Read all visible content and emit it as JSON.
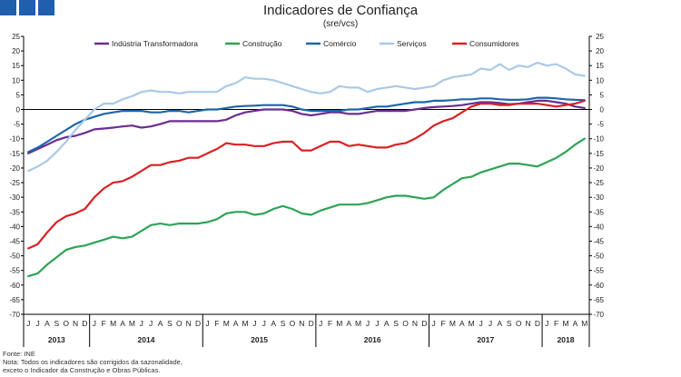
{
  "page": {
    "title": "Indicadores de Confiança",
    "subtitle": "(sre/vcs)",
    "source": "Fonte: INE",
    "note_line1": "Nota: Todos os indicadores são corrigidos da sazonalidade,",
    "note_line2": "exceto o Indicador da Construção e Obras Públicas."
  },
  "chart_data": {
    "type": "line",
    "title": "Indicadores de Confiança",
    "subtitle": "(sre/vcs)",
    "ylim": [
      -70,
      25
    ],
    "ytick_step": 5,
    "dual_y_axis": true,
    "grid": false,
    "zero_line": true,
    "legend_position": "top",
    "x_month_labels": [
      "J",
      "J",
      "A",
      "S",
      "O",
      "N",
      "D",
      "J",
      "F",
      "M",
      "A",
      "M",
      "J",
      "J",
      "A",
      "S",
      "O",
      "N",
      "D",
      "J",
      "F",
      "M",
      "A",
      "M",
      "J",
      "J",
      "A",
      "S",
      "O",
      "N",
      "D",
      "J",
      "F",
      "M",
      "A",
      "M",
      "J",
      "J",
      "A",
      "S",
      "O",
      "N",
      "D",
      "J",
      "F",
      "M",
      "A",
      "M",
      "J",
      "J",
      "A",
      "S",
      "O",
      "N",
      "D",
      "J",
      "F",
      "M",
      "A",
      "M"
    ],
    "x_year_groups": [
      {
        "label": "2013",
        "start": 0,
        "count": 7
      },
      {
        "label": "2014",
        "start": 7,
        "count": 12
      },
      {
        "label": "2015",
        "start": 19,
        "count": 12
      },
      {
        "label": "2016",
        "start": 31,
        "count": 12
      },
      {
        "label": "2017",
        "start": 43,
        "count": 12
      },
      {
        "label": "2018",
        "start": 55,
        "count": 5
      }
    ],
    "series": [
      {
        "name": "Indústria Transformadora",
        "color": "#6b2c91",
        "values": [
          -15,
          -13.5,
          -12,
          -10.5,
          -9.5,
          -9,
          -8,
          -6.8,
          -6.5,
          -6.2,
          -5.8,
          -5.5,
          -6.2,
          -5.8,
          -5,
          -4,
          -4,
          -4,
          -4,
          -4,
          -4,
          -3.5,
          -2,
          -1,
          -0.5,
          0,
          0,
          0,
          -0.5,
          -1.5,
          -2,
          -1.5,
          -1,
          -1,
          -1.5,
          -1.5,
          -1,
          -0.5,
          -0.5,
          -0.5,
          -0.5,
          0,
          0.5,
          0.8,
          1,
          1.2,
          1.5,
          2,
          2.5,
          2.5,
          2.2,
          1.8,
          2,
          2.5,
          3,
          3,
          2.5,
          2,
          1,
          0.5
        ]
      },
      {
        "name": "Construção",
        "color": "#2ea356",
        "values": [
          -57,
          -56,
          -53,
          -50.5,
          -48,
          -47,
          -46.5,
          -45.5,
          -44.5,
          -43.5,
          -44,
          -43.5,
          -41.5,
          -39.5,
          -39,
          -39.5,
          -39,
          -39,
          -39,
          -38.5,
          -37.5,
          -35.5,
          -35,
          -35,
          -36,
          -35.5,
          -34,
          -33,
          -34,
          -35.5,
          -36,
          -34.5,
          -33.5,
          -32.5,
          -32.5,
          -32.5,
          -32,
          -31,
          -30,
          -29.5,
          -29.5,
          -30,
          -30.5,
          -30,
          -27.5,
          -25.5,
          -23.5,
          -23,
          -21.5,
          -20.5,
          -19.5,
          -18.5,
          -18.5,
          -19,
          -19.5,
          -18,
          -16.5,
          -14.5,
          -12,
          -10
        ]
      },
      {
        "name": "Comércio",
        "color": "#1e66a8",
        "values": [
          -14.5,
          -13,
          -11,
          -9,
          -7,
          -5,
          -3.5,
          -2.5,
          -1.5,
          -1,
          -0.5,
          -0.5,
          -0.5,
          -1,
          -1,
          -0.5,
          -0.5,
          -1,
          -0.5,
          0,
          0,
          0.5,
          1,
          1.2,
          1.3,
          1.5,
          1.5,
          1.5,
          1,
          0,
          -0.5,
          -0.5,
          -0.5,
          -0.5,
          0,
          0,
          0.5,
          1,
          1,
          1.5,
          2,
          2.5,
          2.5,
          3,
          3,
          3.2,
          3.5,
          3.5,
          3.8,
          3.8,
          3.5,
          3.3,
          3.3,
          3.5,
          4,
          4,
          3.8,
          3.5,
          3.3,
          3.2
        ]
      },
      {
        "name": "Serviços",
        "color": "#a9c9e8",
        "values": [
          -21,
          -19.5,
          -17.5,
          -14.5,
          -11,
          -7,
          -3.5,
          0,
          2,
          2,
          3.5,
          4.5,
          6,
          6.5,
          6,
          6,
          5.5,
          6,
          6,
          6,
          6,
          8,
          9,
          11,
          10.5,
          10.5,
          10,
          9,
          8,
          7,
          6,
          5.5,
          6,
          8,
          7.5,
          7.5,
          6,
          7,
          7.5,
          8,
          7.5,
          7,
          7.5,
          8,
          10,
          11,
          11.5,
          12,
          14,
          13.5,
          15.5,
          13.5,
          15,
          14.5,
          16,
          15,
          15.5,
          14,
          12,
          11.5
        ]
      },
      {
        "name": "Consumidores",
        "color": "#d92124",
        "values": [
          -47.5,
          -46,
          -42,
          -38.5,
          -36.5,
          -35.5,
          -34,
          -30,
          -27,
          -25,
          -24.5,
          -23,
          -21,
          -19,
          -19,
          -18,
          -17.5,
          -16.5,
          -16.5,
          -15,
          -13.5,
          -11.5,
          -12,
          -12,
          -12.5,
          -12.5,
          -11.5,
          -11,
          -11,
          -14,
          -14,
          -12.5,
          -11,
          -11,
          -12.5,
          -12,
          -12.5,
          -13,
          -13,
          -12,
          -11.5,
          -10,
          -8,
          -5.5,
          -4,
          -3,
          -1,
          1,
          2,
          2,
          1.5,
          1.5,
          2,
          2,
          2,
          1.5,
          1,
          1.5,
          2,
          3
        ]
      }
    ]
  }
}
